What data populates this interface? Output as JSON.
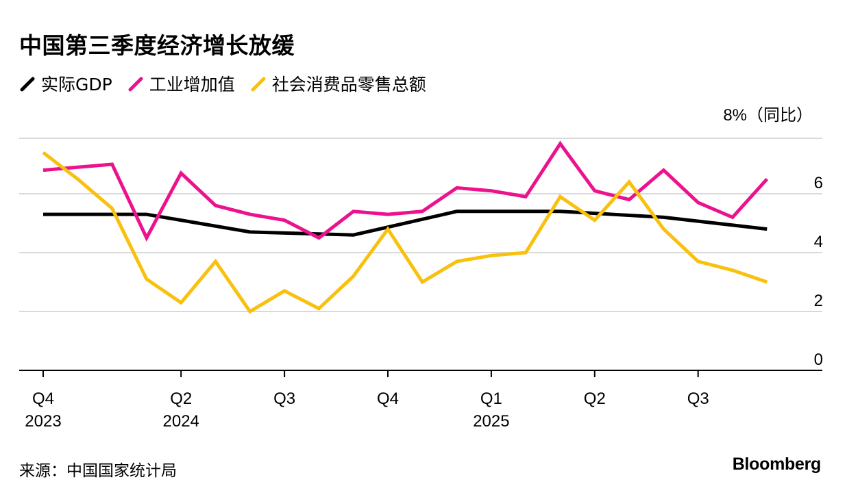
{
  "title": "中国第三季度经济增长放缓",
  "source": "来源：中国国家统计局",
  "brand": "Bloomberg",
  "unit_label": "8%（同比）",
  "chart_data": {
    "type": "line",
    "ylim": [
      0,
      8
    ],
    "yticks": [
      0,
      2,
      4,
      6
    ],
    "x_ticks": [
      {
        "index": 0,
        "label": "Q4",
        "year": "2023"
      },
      {
        "index": 4,
        "label": "Q2",
        "year": "2024"
      },
      {
        "index": 7,
        "label": "Q3",
        "year": ""
      },
      {
        "index": 10,
        "label": "Q4",
        "year": ""
      },
      {
        "index": 13,
        "label": "Q1",
        "year": "2025"
      },
      {
        "index": 16,
        "label": "Q2",
        "year": ""
      },
      {
        "index": 19,
        "label": "Q3",
        "year": ""
      }
    ],
    "series": [
      {
        "name": "实际GDP",
        "color": "#000000",
        "x": [
          0,
          3,
          6,
          9,
          12,
          15,
          18,
          21
        ],
        "values": [
          5.3,
          5.3,
          4.7,
          4.6,
          5.4,
          5.4,
          5.2,
          4.8
        ]
      },
      {
        "name": "工业增加值",
        "color": "#ec128e",
        "x": [
          0,
          1,
          2,
          3,
          4,
          5,
          6,
          7,
          8,
          9,
          10,
          11,
          12,
          13,
          14,
          15,
          16,
          17,
          18,
          19,
          20,
          21
        ],
        "values": [
          6.8,
          6.9,
          7.0,
          4.5,
          6.7,
          5.6,
          5.3,
          5.1,
          4.5,
          5.4,
          5.3,
          5.4,
          6.2,
          6.1,
          5.9,
          7.7,
          6.1,
          5.8,
          6.8,
          5.7,
          5.2,
          6.5
        ]
      },
      {
        "name": "社会消费品零售总额",
        "color": "#f9c00d",
        "x": [
          0,
          1,
          2,
          3,
          4,
          5,
          6,
          7,
          8,
          9,
          10,
          11,
          12,
          13,
          14,
          15,
          16,
          17,
          18,
          19,
          20,
          21
        ],
        "values": [
          7.4,
          6.5,
          5.5,
          3.1,
          2.3,
          3.7,
          2.0,
          2.7,
          2.1,
          3.2,
          4.8,
          3.0,
          3.7,
          3.9,
          4.0,
          5.9,
          5.1,
          6.4,
          4.8,
          3.7,
          3.4,
          3.0
        ]
      }
    ]
  }
}
